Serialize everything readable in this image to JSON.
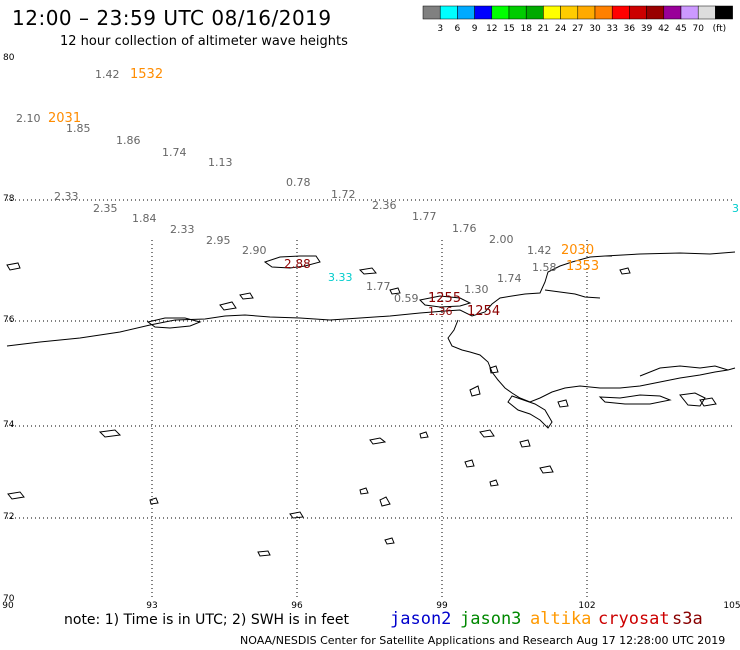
{
  "header": {
    "title": "12:00 – 23:59 UTC 08/16/2019",
    "subtitle": "12 hour collection of altimeter wave heights"
  },
  "colorbar": {
    "colors": [
      "#808080",
      "#00ffff",
      "#00aaff",
      "#0000ff",
      "#00ff00",
      "#00cc00",
      "#00aa00",
      "#ffff00",
      "#ffcc00",
      "#ffaa00",
      "#ff8000",
      "#ff0000",
      "#cc0000",
      "#990000",
      "#990099",
      "#cc99ff",
      "#dddddd",
      "#000000"
    ],
    "labels": [
      "3",
      "6",
      "9",
      "12",
      "15",
      "18",
      "21",
      "24",
      "27",
      "30",
      "33",
      "36",
      "39",
      "42",
      "45",
      "70",
      "(ft)"
    ]
  },
  "axes": {
    "lat_labels": [
      "80",
      "78",
      "76",
      "74",
      "72",
      "70"
    ],
    "lon_labels": [
      "90",
      "93",
      "96",
      "99",
      "102",
      "105"
    ]
  },
  "wave_heights": [
    {
      "text": "1.42",
      "color": "#666666"
    },
    {
      "text": "1532",
      "color": "#ff8c00"
    },
    {
      "text": "2.10",
      "color": "#666666"
    },
    {
      "text": "2031",
      "color": "#ff8c00"
    },
    {
      "text": "1.85",
      "color": "#666666"
    },
    {
      "text": "1.86",
      "color": "#666666"
    },
    {
      "text": "1.74",
      "color": "#666666"
    },
    {
      "text": "1.13",
      "color": "#666666"
    },
    {
      "text": "0.78",
      "color": "#666666"
    },
    {
      "text": "1.72",
      "color": "#666666"
    },
    {
      "text": "2.36",
      "color": "#666666"
    },
    {
      "text": "1.77",
      "color": "#666666"
    },
    {
      "text": "1.76",
      "color": "#666666"
    },
    {
      "text": "2.00",
      "color": "#666666"
    },
    {
      "text": "1.42",
      "color": "#666666"
    },
    {
      "text": "2030",
      "color": "#ff8c00"
    },
    {
      "text": "1353",
      "color": "#ff8c00"
    },
    {
      "text": "2.33",
      "color": "#666666"
    },
    {
      "text": "2.35",
      "color": "#666666"
    },
    {
      "text": "1.84",
      "color": "#666666"
    },
    {
      "text": "2.33",
      "color": "#666666"
    },
    {
      "text": "2.95",
      "color": "#666666"
    },
    {
      "text": "2.90",
      "color": "#666666"
    },
    {
      "text": "2.88",
      "color": "#8b0000"
    },
    {
      "text": "3.33",
      "color": "#00cccc"
    },
    {
      "text": "1.77",
      "color": "#666666"
    },
    {
      "text": "1.74",
      "color": "#666666"
    },
    {
      "text": "1.30",
      "color": "#666666"
    },
    {
      "text": "1.58",
      "color": "#666666"
    },
    {
      "text": "0.59",
      "color": "#666666"
    },
    {
      "text": "1255",
      "color": "#8b0000"
    },
    {
      "text": "1254",
      "color": "#8b0000"
    },
    {
      "text": "1.36",
      "color": "#8b0000"
    },
    {
      "text": "3.",
      "color": "#00cccc"
    }
  ],
  "note": "note: 1) Time is in UTC; 2) SWH is in feet",
  "legend": [
    {
      "name": "jason2",
      "color": "#0000cc"
    },
    {
      "name": "jason3",
      "color": "#008800"
    },
    {
      "name": "altika",
      "color": "#ff9900"
    },
    {
      "name": "cryosat",
      "color": "#cc0000"
    },
    {
      "name": "s3a",
      "color": "#880000"
    }
  ],
  "footer": "NOAA/NESDIS Center for Satellite Applications and Research   Aug 17 12:28:00 UTC 2019"
}
